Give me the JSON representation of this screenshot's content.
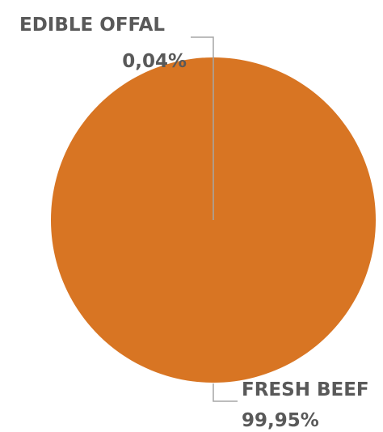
{
  "chart_data": {
    "type": "pie",
    "title": "",
    "slices": [
      {
        "label": "EDIBLE OFFAL",
        "value": 0.04,
        "value_text": "0,04%",
        "color": "#8a8a8a"
      },
      {
        "label": "FRESH BEEF",
        "value": 99.95,
        "value_text": "99,95%",
        "color": "#D87523"
      }
    ],
    "legend": false,
    "label_color": "#595959",
    "leader_line_color": "#a6a6a6"
  }
}
